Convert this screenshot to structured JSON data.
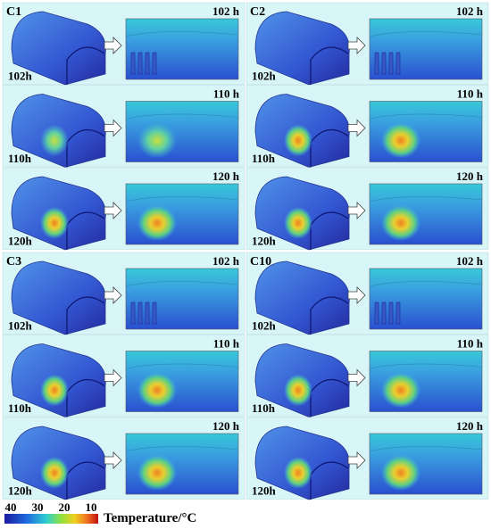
{
  "panels": [
    {
      "label": "C1",
      "rows": [
        {
          "left_label": "102h",
          "right_label": "102 h"
        },
        {
          "left_label": "110h",
          "right_label": "110 h"
        },
        {
          "left_label": "120h",
          "right_label": "120 h"
        }
      ]
    },
    {
      "label": "C2",
      "rows": [
        {
          "left_label": "102h",
          "right_label": "102 h"
        },
        {
          "left_label": "110h",
          "right_label": "110 h"
        },
        {
          "left_label": "120h",
          "right_label": "120 h"
        }
      ]
    },
    {
      "label": "C3",
      "rows": [
        {
          "left_label": "102h",
          "right_label": "102 h"
        },
        {
          "left_label": "110h",
          "right_label": "110 h"
        },
        {
          "left_label": "120h",
          "right_label": "120 h"
        }
      ]
    },
    {
      "label": "C10",
      "rows": [
        {
          "left_label": "102h",
          "right_label": "102 h"
        },
        {
          "left_label": "110h",
          "right_label": "110 h"
        },
        {
          "left_label": "120h",
          "right_label": "120 h"
        }
      ]
    }
  ],
  "colorbar": {
    "ticks": [
      "40",
      "30",
      "20",
      "10"
    ],
    "title": "Temperature/°C"
  }
}
